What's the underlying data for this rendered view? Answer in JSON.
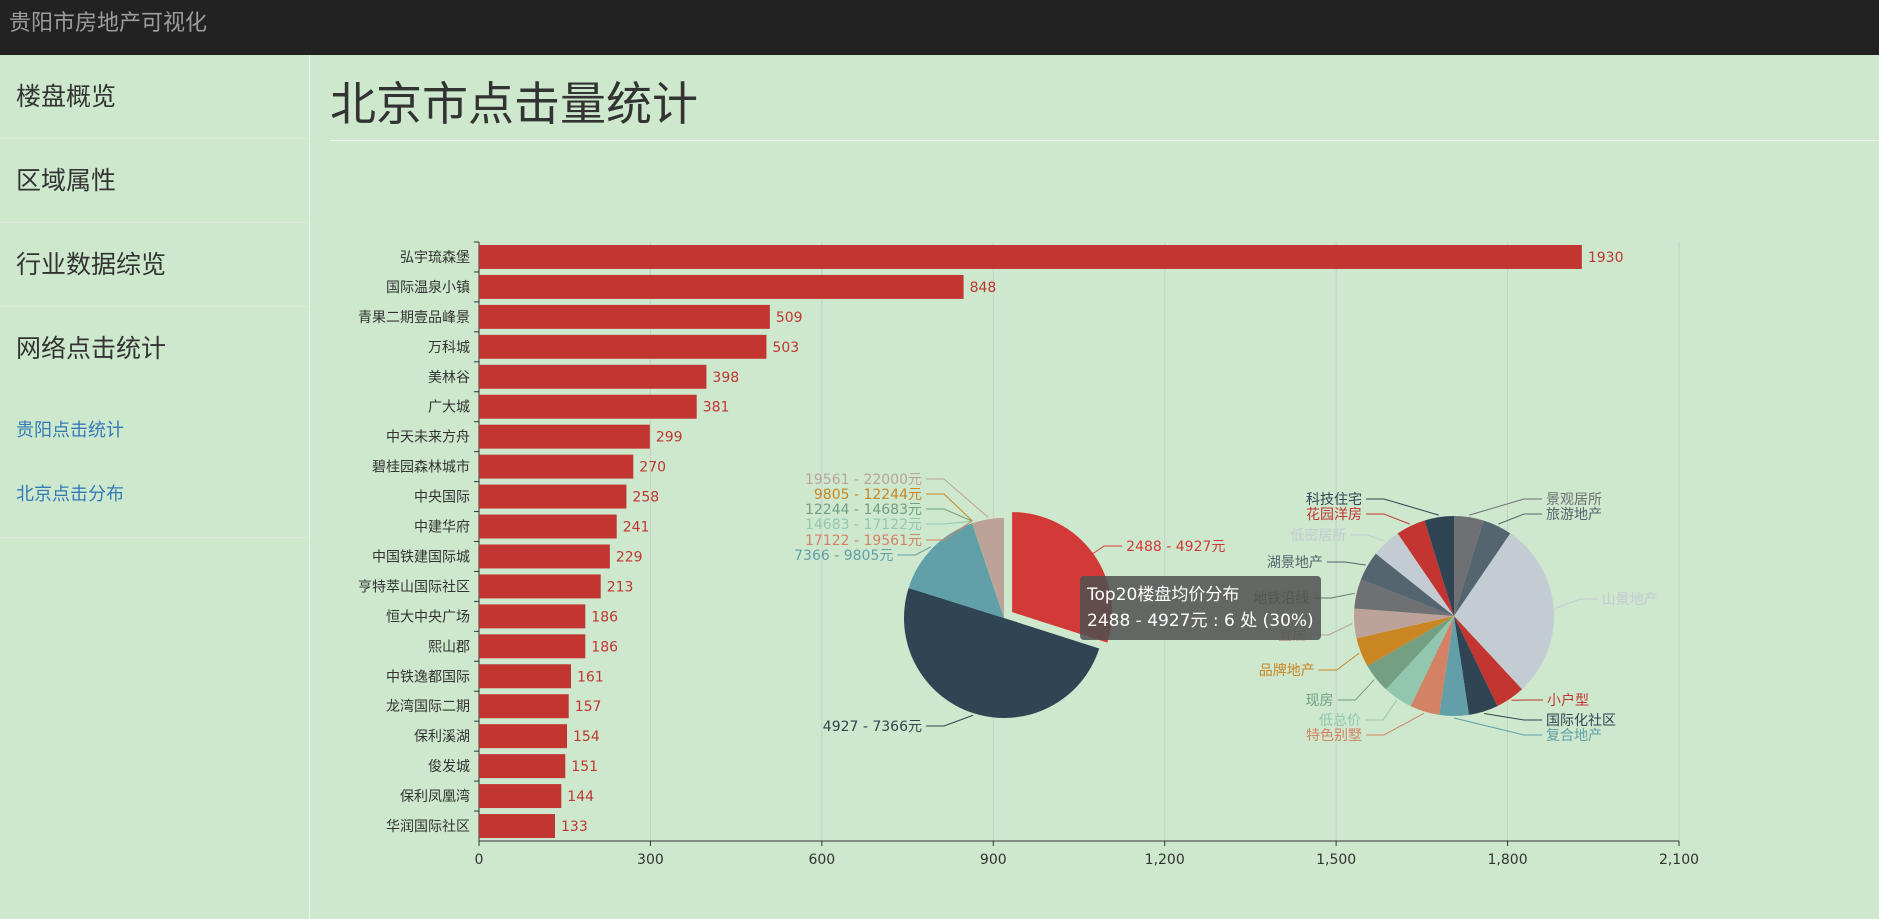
{
  "header": {
    "brand": "贵阳市房地产可视化"
  },
  "sidebar": {
    "items": [
      {
        "label": "楼盘概览"
      },
      {
        "label": "区域属性"
      },
      {
        "label": "行业数据综览"
      },
      {
        "label": "网络点击统计"
      }
    ],
    "subitems": [
      {
        "label": "贵阳点击统计"
      },
      {
        "label": "北京点击分布"
      }
    ]
  },
  "page": {
    "title": "北京市点击量统计"
  },
  "tooltip": {
    "title": "Top20楼盘均价分布",
    "body": "2488 - 4927元 : 6 处 (30%)"
  },
  "colors": {
    "bar": "#c23531",
    "axis": "#333333",
    "grid": "#cccccc"
  },
  "chart_data": [
    {
      "type": "bar",
      "orientation": "horizontal",
      "categories": [
        "弘宇琉森堡",
        "国际温泉小镇",
        "青果二期壹品峰景",
        "万科城",
        "美林谷",
        "广大城",
        "中天未来方舟",
        "碧桂园森林城市",
        "中央国际",
        "中建华府",
        "中国铁建国际城",
        "亨特萃山国际社区",
        "恒大中央广场",
        "熙山郡",
        "中铁逸都国际",
        "龙湾国际二期",
        "保利溪湖",
        "俊发城",
        "保利凤凰湾",
        "华润国际社区"
      ],
      "values": [
        1930,
        848,
        509,
        503,
        398,
        381,
        299,
        270,
        258,
        241,
        229,
        213,
        186,
        186,
        161,
        157,
        154,
        151,
        144,
        133
      ],
      "xlim": [
        0,
        2100
      ],
      "xticks": [
        "0",
        "300",
        "600",
        "900",
        "1,200",
        "1,500",
        "1,800",
        "2,100"
      ],
      "color": "#c23531",
      "grid": true
    },
    {
      "type": "pie",
      "labels": [
        "2488 - 4927元",
        "4927 - 7366元",
        "7366 - 9805元",
        "17122 - 19561元",
        "14683 - 17122元",
        "12244 - 14683元",
        "9805 - 12244元",
        "19561 - 22000元"
      ],
      "values": [
        6,
        10,
        3,
        0.01,
        0.01,
        0.01,
        0.01,
        1
      ],
      "colors": [
        "#d23a38",
        "#2f4554",
        "#61a0a8",
        "#d48265",
        "#91c7ae",
        "#749f83",
        "#ca8622",
        "#bda29a"
      ]
    },
    {
      "type": "pie",
      "labels": [
        "景观居所",
        "旅游地产",
        "山景地产",
        "小户型",
        "国际化社区",
        "复合地产",
        "特色别墅",
        "低总价",
        "现房",
        "品牌地产",
        "宜居",
        "地铁沿线",
        "湖景地产",
        "低密居所",
        "花园洋房",
        "科技住宅"
      ],
      "values": [
        1,
        1,
        6,
        1,
        1,
        1,
        1,
        1,
        1,
        1,
        1,
        1,
        1,
        1,
        1,
        1
      ],
      "colors": [
        "#6e7074",
        "#546570",
        "#c4ccd3",
        "#c23531",
        "#2f4554",
        "#61a0a8",
        "#d48265",
        "#91c7ae",
        "#749f83",
        "#ca8622",
        "#bda29a",
        "#6e7074",
        "#546570",
        "#c4ccd3",
        "#c23531",
        "#2f4554"
      ]
    }
  ]
}
